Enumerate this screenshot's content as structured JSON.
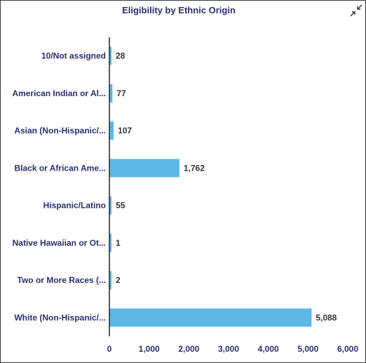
{
  "colors": {
    "bar": "#5db8e6",
    "axis": "#222222",
    "title": "#2b2f6e",
    "value_text": "#333333"
  },
  "icons": {
    "collapse": "collapse-arrows-icon"
  },
  "chart_data": {
    "type": "bar",
    "orientation": "horizontal",
    "title": "Eligibility by Ethnic Origin",
    "xlabel": "",
    "ylabel": "",
    "categories": [
      "10/Not assigned",
      "American Indian or Al...",
      "Asian (Non-Hispanic/...",
      "Black or African Ame...",
      "Hispanic/Latino",
      "Native Hawaiian or Ot...",
      "Two or More Races (...",
      "White (Non-Hispanic/..."
    ],
    "values": [
      28,
      77,
      107,
      1762,
      55,
      1,
      2,
      5088
    ],
    "value_labels": [
      "28",
      "77",
      "107",
      "1,762",
      "55",
      "1",
      "2",
      "5,088"
    ],
    "xlim": [
      0,
      6000
    ],
    "ticks": [
      0,
      1000,
      2000,
      3000,
      4000,
      5000,
      6000
    ],
    "tick_labels": [
      "0",
      "1,000",
      "2,000",
      "3,000",
      "4,000",
      "5,000",
      "6,000"
    ],
    "grid": false,
    "legend": "none"
  }
}
